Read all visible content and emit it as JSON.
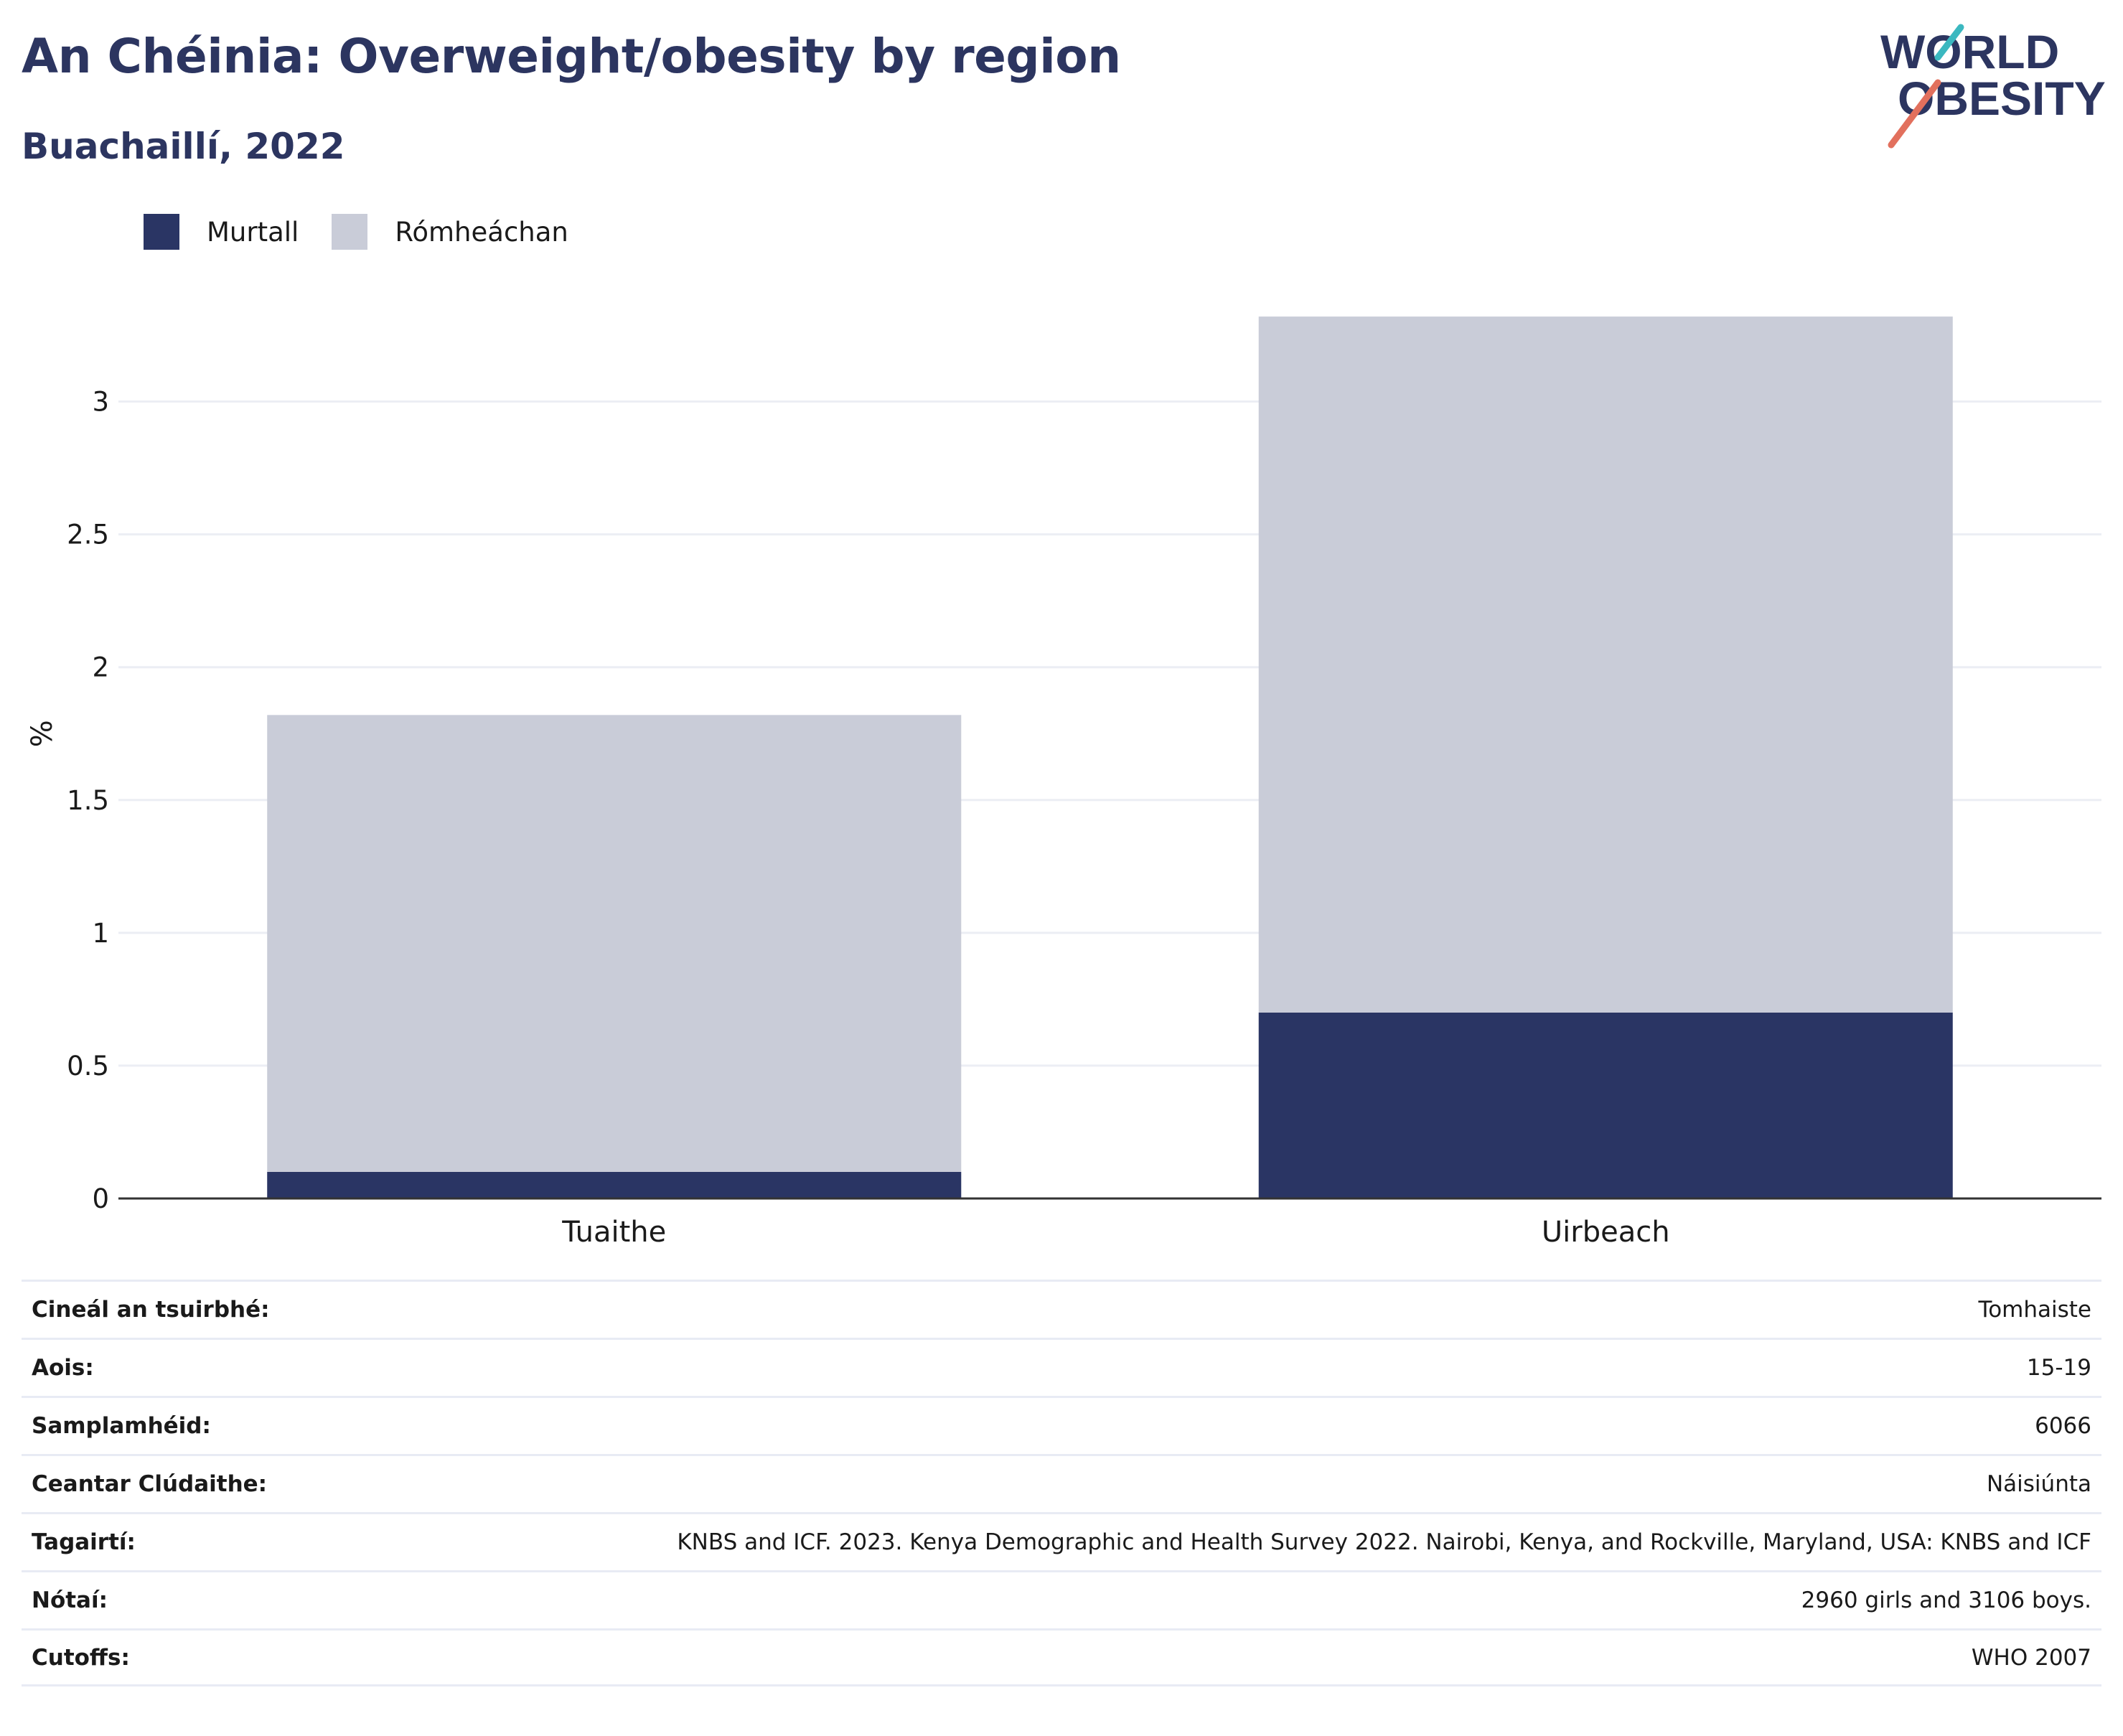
{
  "header": {
    "title": "An Chéinia: Overweight/obesity by region",
    "subtitle": "Buachaillí, 2022"
  },
  "logo": {
    "line1": "WORLD",
    "line2": "OBESITY"
  },
  "colors": {
    "obese": "#2a3564",
    "overweight": "#c9ccd8",
    "title": "#2c3560",
    "grid": "#eceef4",
    "axis": "#333333"
  },
  "chart_data": {
    "type": "bar",
    "stacked": true,
    "categories": [
      "Tuaithe",
      "Uirbeach"
    ],
    "series": [
      {
        "name": "Murtall",
        "values": [
          0.1,
          0.7
        ]
      },
      {
        "name": "Rómheáchan",
        "values": [
          1.72,
          2.62
        ]
      }
    ],
    "ylabel": "%",
    "ylim": [
      0,
      3.35
    ],
    "yticks": [
      "0",
      "0.5",
      "1",
      "1.5",
      "2",
      "2.5",
      "3"
    ],
    "grid": true,
    "legend_position": "top-left"
  },
  "info": [
    {
      "label": "Cineál an tsuirbhé:",
      "value": "Tomhaiste"
    },
    {
      "label": "Aois:",
      "value": "15-19"
    },
    {
      "label": "Samplamhéid:",
      "value": "6066"
    },
    {
      "label": "Ceantar Clúdaithe:",
      "value": "Náisiúnta"
    },
    {
      "label": "Tagairtí:",
      "value": "KNBS and ICF. 2023. Kenya Demographic and Health Survey 2022. Nairobi, Kenya, and Rockville, Maryland, USA: KNBS and ICF"
    },
    {
      "label": "Nótaí:",
      "value": "2960 girls and 3106 boys."
    },
    {
      "label": "Cutoffs:",
      "value": "WHO 2007"
    }
  ]
}
